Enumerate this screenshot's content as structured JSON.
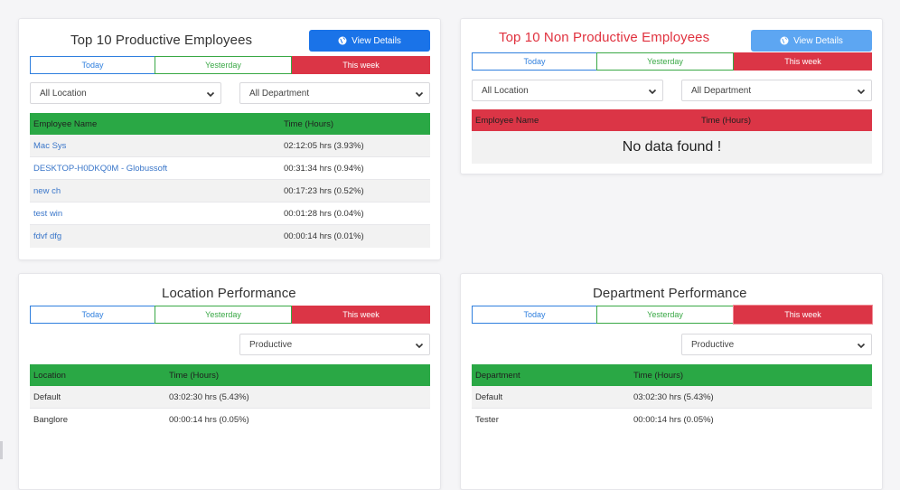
{
  "productive": {
    "title": "Top 10 Productive Employees",
    "view_label": "View Details",
    "tabs": [
      "Today",
      "Yesterday",
      "This week"
    ],
    "location_select": "All Location",
    "department_select": "All Department",
    "columns": [
      "Employee Name",
      "Time (Hours)"
    ],
    "rows": [
      {
        "name": "Mac Sys",
        "time": "02:12:05 hrs (3.93%)"
      },
      {
        "name": "DESKTOP-H0DKQ0M - Globussoft",
        "time": "00:31:34 hrs (0.94%)"
      },
      {
        "name": "new ch",
        "time": "00:17:23 hrs (0.52%)"
      },
      {
        "name": "test win",
        "time": "00:01:28 hrs (0.04%)"
      },
      {
        "name": "fdvf dfg",
        "time": "00:00:14 hrs (0.01%)"
      }
    ]
  },
  "non_productive": {
    "title": "Top 10 Non Productive Employees",
    "view_label": "View Details",
    "tabs": [
      "Today",
      "Yesterday",
      "This week"
    ],
    "location_select": "All Location",
    "department_select": "All Department",
    "columns": [
      "Employee Name",
      "Time (Hours)"
    ],
    "empty_message": "No data found !"
  },
  "location": {
    "title": "Location Performance",
    "tabs": [
      "Today",
      "Yesterday",
      "This week"
    ],
    "filter_select": "Productive",
    "columns": [
      "Location",
      "Time (Hours)"
    ],
    "rows": [
      {
        "name": "Default",
        "time": "03:02:30 hrs (5.43%)"
      },
      {
        "name": "Banglore",
        "time": "00:00:14 hrs (0.05%)"
      }
    ]
  },
  "department": {
    "title": "Department Performance",
    "tabs": [
      "Today",
      "Yesterday",
      "This week"
    ],
    "filter_select": "Productive",
    "columns": [
      "Department",
      "Time (Hours)"
    ],
    "rows": [
      {
        "name": "Default",
        "time": "03:02:30 hrs (5.43%)"
      },
      {
        "name": "Tester",
        "time": "00:00:14 hrs (0.05%)"
      }
    ]
  },
  "colors": {
    "accent_blue": "#1a73e8",
    "success_green": "#2aa845",
    "danger_red": "#db3546",
    "link_blue": "#3a76c9"
  }
}
